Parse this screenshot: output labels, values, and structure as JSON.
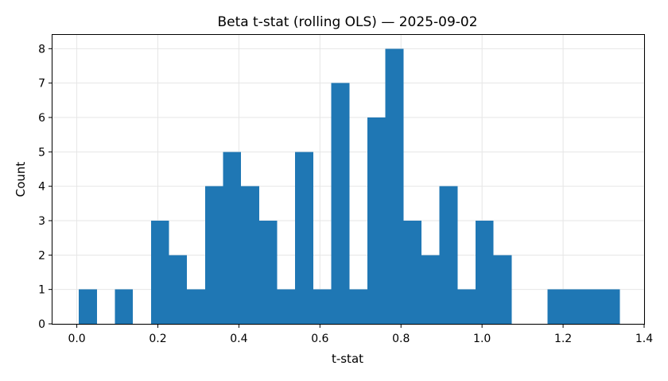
{
  "chart_data": {
    "type": "bar",
    "title": "Beta t-stat (rolling OLS) — 2025-09-02",
    "xlabel": "t-stat",
    "ylabel": "Count",
    "xlim": [
      -0.06,
      1.4
    ],
    "ylim": [
      0,
      8.4
    ],
    "xticks": [
      "0.0",
      "0.2",
      "0.4",
      "0.6",
      "0.8",
      "1.0",
      "1.2",
      "1.4"
    ],
    "yticks": [
      "0",
      "1",
      "2",
      "3",
      "4",
      "5",
      "6",
      "7",
      "8"
    ],
    "grid": true,
    "bar_color": "#1f77b4",
    "bin_edges": [
      0.005,
      0.0495,
      0.094,
      0.1385,
      0.183,
      0.2275,
      0.272,
      0.3165,
      0.361,
      0.4055,
      0.45,
      0.4945,
      0.539,
      0.5835,
      0.628,
      0.6725,
      0.717,
      0.7615,
      0.806,
      0.8505,
      0.895,
      0.9395,
      0.984,
      1.0285,
      1.073,
      1.1175,
      1.162,
      1.2065,
      1.251,
      1.2955,
      1.34
    ],
    "counts": [
      1,
      0,
      1,
      0,
      3,
      2,
      1,
      4,
      5,
      4,
      3,
      1,
      5,
      1,
      7,
      1,
      6,
      8,
      3,
      2,
      4,
      1,
      3,
      2,
      0,
      0,
      1,
      1,
      1,
      1
    ]
  }
}
